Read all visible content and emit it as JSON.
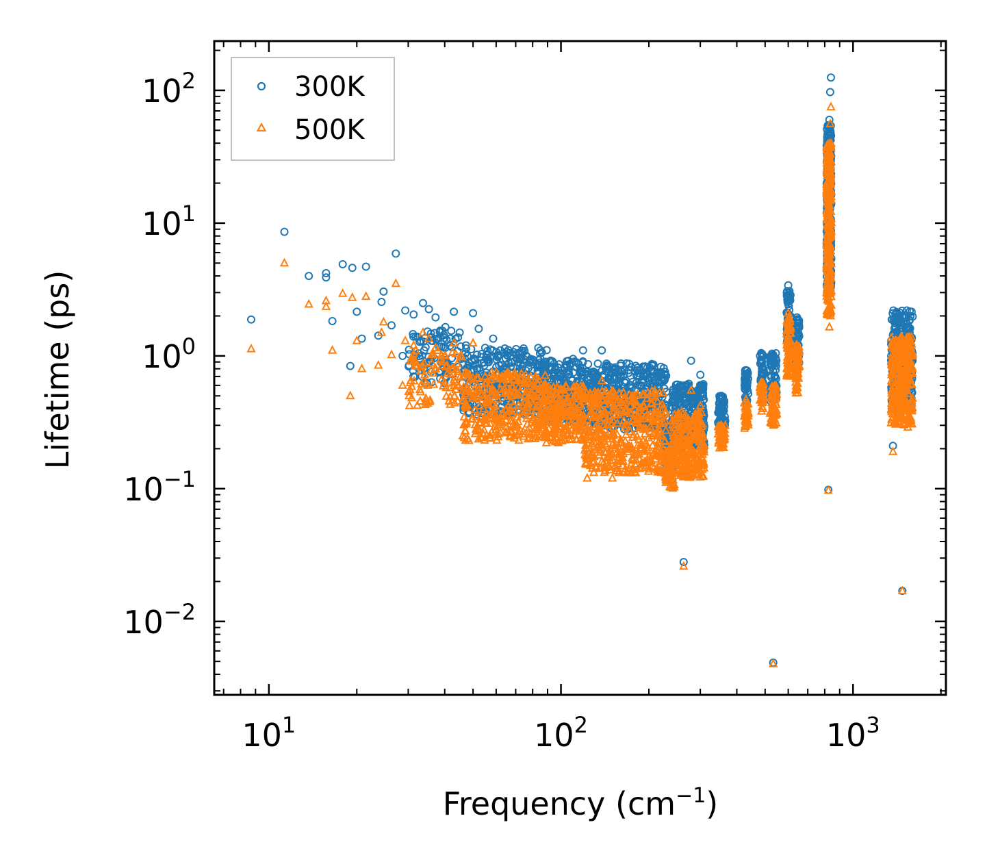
{
  "chart_data": {
    "type": "scatter",
    "title": "",
    "xlabel": "Frequency (cm",
    "xlabel_sup": "−1",
    "xlabel_close": ")",
    "ylabel": "Lifetime (ps)",
    "xscale": "log",
    "yscale": "log",
    "xlim": [
      6.5,
      2080
    ],
    "ylim": [
      0.0028,
      235
    ],
    "x_ticks": [
      {
        "value": 10,
        "base": "10",
        "exp": "1"
      },
      {
        "value": 100,
        "base": "10",
        "exp": "2"
      },
      {
        "value": 1000,
        "base": "10",
        "exp": "3"
      }
    ],
    "y_ticks": [
      {
        "value": 0.01,
        "base": "10",
        "exp": "−2"
      },
      {
        "value": 0.1,
        "base": "10",
        "exp": "−1"
      },
      {
        "value": 1,
        "base": "10",
        "exp": "0"
      },
      {
        "value": 10,
        "base": "10",
        "exp": "1"
      },
      {
        "value": 100,
        "base": "10",
        "exp": "2"
      }
    ],
    "legend": {
      "placement": "top-left"
    },
    "series": [
      {
        "name": "300K",
        "marker": "circle",
        "color": "#1f77b4",
        "points": [
          [
            8.7,
            1.88
          ],
          [
            11.3,
            8.6
          ],
          [
            13.7,
            4.0
          ],
          [
            15.7,
            4.2
          ],
          [
            15.7,
            3.9
          ],
          [
            16.5,
            1.83
          ],
          [
            17.9,
            4.9
          ],
          [
            19.0,
            0.84
          ],
          [
            19.3,
            4.6
          ],
          [
            20.0,
            2.15
          ],
          [
            20.8,
            1.35
          ],
          [
            21.5,
            4.7
          ],
          [
            23.7,
            1.42
          ],
          [
            24.3,
            2.55
          ],
          [
            24.7,
            3.05
          ],
          [
            26.3,
            1.7
          ],
          [
            27.2,
            5.9
          ],
          [
            28.7,
            1.0
          ],
          [
            29.3,
            2.2
          ],
          [
            30.2,
            0.85
          ],
          [
            31.3,
            2.05
          ],
          [
            33.7,
            2.5
          ],
          [
            34.0,
            1.1
          ],
          [
            35.3,
            2.25
          ],
          [
            36.0,
            1.3
          ],
          [
            37.2,
            1.95
          ],
          [
            38.6,
            1.55
          ],
          [
            40.2,
            1.65
          ],
          [
            41.7,
            1.35
          ],
          [
            43.0,
            2.15
          ],
          [
            45.0,
            1.5
          ],
          [
            47.3,
            1.2
          ],
          [
            50.0,
            2.1
          ],
          [
            52.3,
            1.6
          ],
          [
            55.0,
            1.15
          ],
          [
            58.6,
            1.35
          ],
          [
            62.0,
            1.1
          ],
          [
            66.4,
            1.05
          ],
          [
            72.0,
            0.95
          ],
          [
            80.0,
            0.9
          ],
          [
            86.0,
            0.85
          ],
          [
            110.0,
            0.95
          ],
          [
            119.0,
            1.1
          ],
          [
            138.0,
            1.1
          ],
          [
            160.0,
            0.7
          ],
          [
            210.0,
            0.55
          ],
          [
            230.0,
            0.3
          ],
          [
            263.0,
            0.028
          ],
          [
            279.0,
            0.92
          ],
          [
            300.0,
            0.72
          ],
          [
            354.0,
            0.5
          ],
          [
            430.0,
            0.78
          ],
          [
            485.0,
            1.05
          ],
          [
            533.0,
            0.0049
          ],
          [
            533.0,
            1.02
          ],
          [
            600.0,
            3.4
          ],
          [
            643.0,
            1.95
          ],
          [
            823.0,
            0.098
          ],
          [
            840.0,
            125.0
          ],
          [
            835.0,
            97.0
          ],
          [
            830.0,
            60.0
          ],
          [
            1370.0,
            0.21
          ],
          [
            1375.0,
            2.2
          ],
          [
            1475.0,
            0.017
          ],
          [
            1550.0,
            1.4
          ]
        ],
        "clusters": [
          {
            "x_range": [
              30,
              46
            ],
            "y_range": [
              0.62,
              1.55
            ],
            "count": 90
          },
          {
            "x_range": [
              46,
              90
            ],
            "y_range": [
              0.36,
              1.15
            ],
            "count": 320
          },
          {
            "x_range": [
              86,
              120
            ],
            "y_range": [
              0.32,
              0.95
            ],
            "count": 220
          },
          {
            "x_range": [
              120,
              230
            ],
            "y_range": [
              0.28,
              0.88
            ],
            "count": 420
          },
          {
            "x_range": [
              226,
              245
            ],
            "y_range": [
              0.13,
              0.3
            ],
            "count": 60
          },
          {
            "x_range": [
              240,
              310
            ],
            "y_range": [
              0.2,
              0.62
            ],
            "count": 260
          },
          {
            "x_range": [
              345,
              365
            ],
            "y_range": [
              0.3,
              0.5
            ],
            "count": 60
          },
          {
            "x_range": [
              425,
              438
            ],
            "y_range": [
              0.45,
              0.78
            ],
            "count": 40
          },
          {
            "x_range": [
              480,
              495
            ],
            "y_range": [
              0.6,
              1.05
            ],
            "count": 40
          },
          {
            "x_range": [
              520,
              548
            ],
            "y_range": [
              0.45,
              1.05
            ],
            "count": 60
          },
          {
            "x_range": [
              592,
              612
            ],
            "y_range": [
              1.1,
              3.2
            ],
            "count": 70
          },
          {
            "x_range": [
              635,
              655
            ],
            "y_range": [
              0.8,
              1.9
            ],
            "count": 60
          },
          {
            "x_range": [
              812,
              842
            ],
            "y_range": [
              3.0,
              55.0
            ],
            "count": 300
          },
          {
            "x_range": [
              1350,
              1600
            ],
            "y_range": [
              0.4,
              2.2
            ],
            "count": 300
          }
        ]
      },
      {
        "name": "500K",
        "marker": "triangle",
        "color": "#ff7f0e",
        "points": [
          [
            8.7,
            1.13
          ],
          [
            11.3,
            5.0
          ],
          [
            13.7,
            2.45
          ],
          [
            15.7,
            2.6
          ],
          [
            15.7,
            2.35
          ],
          [
            16.5,
            1.1
          ],
          [
            17.9,
            2.95
          ],
          [
            19.0,
            0.5
          ],
          [
            19.3,
            2.75
          ],
          [
            20.0,
            1.3
          ],
          [
            20.8,
            0.8
          ],
          [
            21.5,
            2.8
          ],
          [
            23.7,
            0.85
          ],
          [
            24.3,
            1.5
          ],
          [
            24.7,
            1.8
          ],
          [
            26.3,
            1.02
          ],
          [
            27.2,
            3.5
          ],
          [
            28.7,
            0.6
          ],
          [
            29.3,
            1.3
          ],
          [
            30.2,
            0.5
          ],
          [
            31.3,
            1.2
          ],
          [
            33.7,
            1.5
          ],
          [
            34.0,
            0.65
          ],
          [
            35.3,
            1.35
          ],
          [
            36.0,
            0.78
          ],
          [
            37.2,
            1.15
          ],
          [
            40.2,
            1.0
          ],
          [
            43.0,
            1.25
          ],
          [
            50.0,
            1.25
          ],
          [
            55.0,
            0.7
          ],
          [
            119.0,
            0.58
          ],
          [
            123.0,
            0.12
          ],
          [
            138.0,
            0.65
          ],
          [
            150.0,
            0.12
          ],
          [
            263.0,
            0.026
          ],
          [
            279.0,
            0.55
          ],
          [
            300.0,
            0.42
          ],
          [
            354.0,
            0.3
          ],
          [
            430.0,
            0.47
          ],
          [
            485.0,
            0.63
          ],
          [
            533.0,
            0.0048
          ],
          [
            533.0,
            0.3
          ],
          [
            600.0,
            2.1
          ],
          [
            643.0,
            1.2
          ],
          [
            823.0,
            0.097
          ],
          [
            830.0,
            1.65
          ],
          [
            840.0,
            75.0
          ],
          [
            835.0,
            56.0
          ],
          [
            1370.0,
            0.19
          ],
          [
            1375.0,
            1.3
          ],
          [
            1475.0,
            0.017
          ],
          [
            1550.0,
            0.85
          ],
          [
            1540.0,
            0.29
          ]
        ],
        "clusters": [
          {
            "x_range": [
              30,
              46
            ],
            "y_range": [
              0.42,
              1.1
            ],
            "count": 90
          },
          {
            "x_range": [
              46,
              90
            ],
            "y_range": [
              0.23,
              0.75
            ],
            "count": 320
          },
          {
            "x_range": [
              86,
              120
            ],
            "y_range": [
              0.22,
              0.6
            ],
            "count": 220
          },
          {
            "x_range": [
              120,
              230
            ],
            "y_range": [
              0.13,
              0.55
            ],
            "count": 420
          },
          {
            "x_range": [
              226,
              245
            ],
            "y_range": [
              0.1,
              0.2
            ],
            "count": 60
          },
          {
            "x_range": [
              240,
              310
            ],
            "y_range": [
              0.12,
              0.38
            ],
            "count": 260
          },
          {
            "x_range": [
              345,
              365
            ],
            "y_range": [
              0.2,
              0.3
            ],
            "count": 60
          },
          {
            "x_range": [
              425,
              438
            ],
            "y_range": [
              0.28,
              0.47
            ],
            "count": 40
          },
          {
            "x_range": [
              480,
              495
            ],
            "y_range": [
              0.38,
              0.63
            ],
            "count": 40
          },
          {
            "x_range": [
              520,
              548
            ],
            "y_range": [
              0.3,
              0.6
            ],
            "count": 60
          },
          {
            "x_range": [
              592,
              612
            ],
            "y_range": [
              0.7,
              2.0
            ],
            "count": 70
          },
          {
            "x_range": [
              635,
              655
            ],
            "y_range": [
              0.5,
              1.2
            ],
            "count": 60
          },
          {
            "x_range": [
              812,
              842
            ],
            "y_range": [
              2.0,
              40.0
            ],
            "count": 300
          },
          {
            "x_range": [
              1350,
              1600
            ],
            "y_range": [
              0.3,
              1.4
            ],
            "count": 300
          }
        ]
      }
    ]
  }
}
